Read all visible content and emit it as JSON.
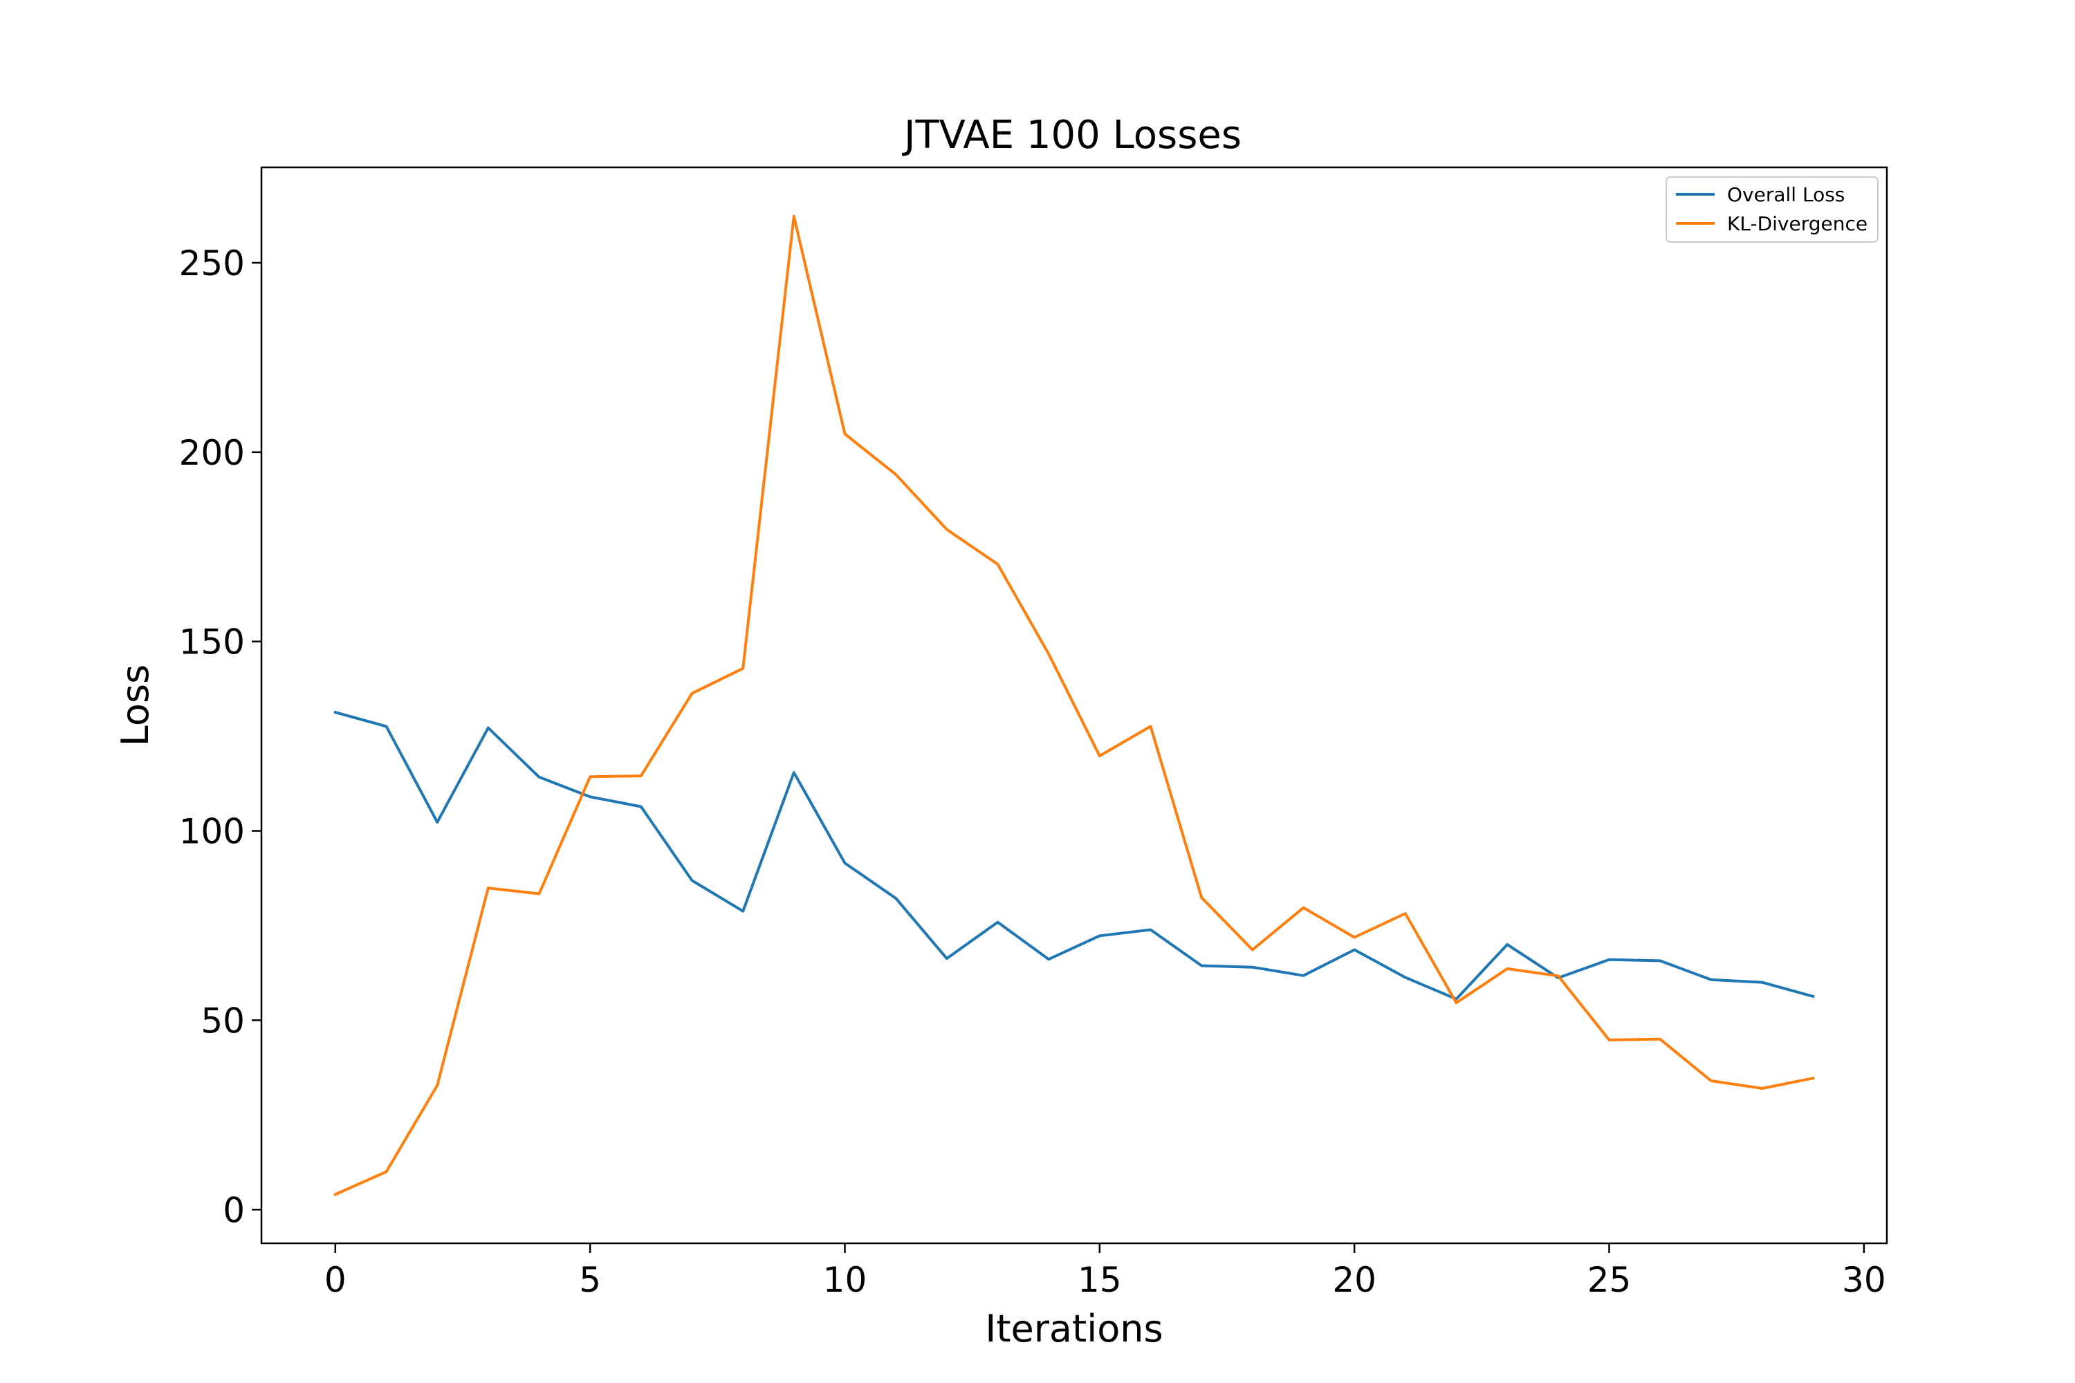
{
  "chart_data": {
    "type": "line",
    "title": "JTVAE 100 Losses",
    "xlabel": "Iterations",
    "ylabel": "Loss",
    "xlim": [
      -1.45,
      30.45
    ],
    "ylim": [
      -8.9,
      275.2
    ],
    "xticks": [
      0,
      5,
      10,
      15,
      20,
      25,
      30
    ],
    "yticks": [
      0,
      50,
      100,
      150,
      200,
      250
    ],
    "grid": false,
    "legend_position": "top-right",
    "x": [
      0,
      1,
      2,
      3,
      4,
      5,
      6,
      7,
      8,
      9,
      10,
      11,
      12,
      13,
      14,
      15,
      16,
      17,
      18,
      19,
      20,
      21,
      22,
      23,
      24,
      25,
      26,
      27,
      28,
      29
    ],
    "series": [
      {
        "name": "Overall Loss",
        "color": "#1f77b4",
        "values": [
          131.3,
          127.6,
          102.3,
          127.2,
          114.2,
          109.0,
          106.4,
          86.9,
          78.8,
          115.4,
          91.5,
          82.2,
          66.3,
          75.9,
          66.1,
          72.3,
          73.9,
          64.4,
          64.0,
          61.8,
          68.6,
          61.3,
          55.6,
          70.0,
          61.2,
          66.0,
          65.7,
          60.7,
          60.0,
          56.3
        ]
      },
      {
        "name": "KL-Divergence",
        "color": "#ff7f0e",
        "values": [
          4.0,
          10.0,
          32.8,
          84.9,
          83.4,
          114.3,
          114.5,
          136.3,
          142.9,
          262.3,
          204.8,
          194.1,
          179.6,
          170.4,
          146.7,
          119.8,
          127.6,
          82.4,
          68.6,
          79.7,
          71.9,
          78.2,
          54.6,
          63.6,
          61.7,
          44.8,
          45.0,
          34.0,
          32.0,
          34.7
        ]
      }
    ]
  }
}
